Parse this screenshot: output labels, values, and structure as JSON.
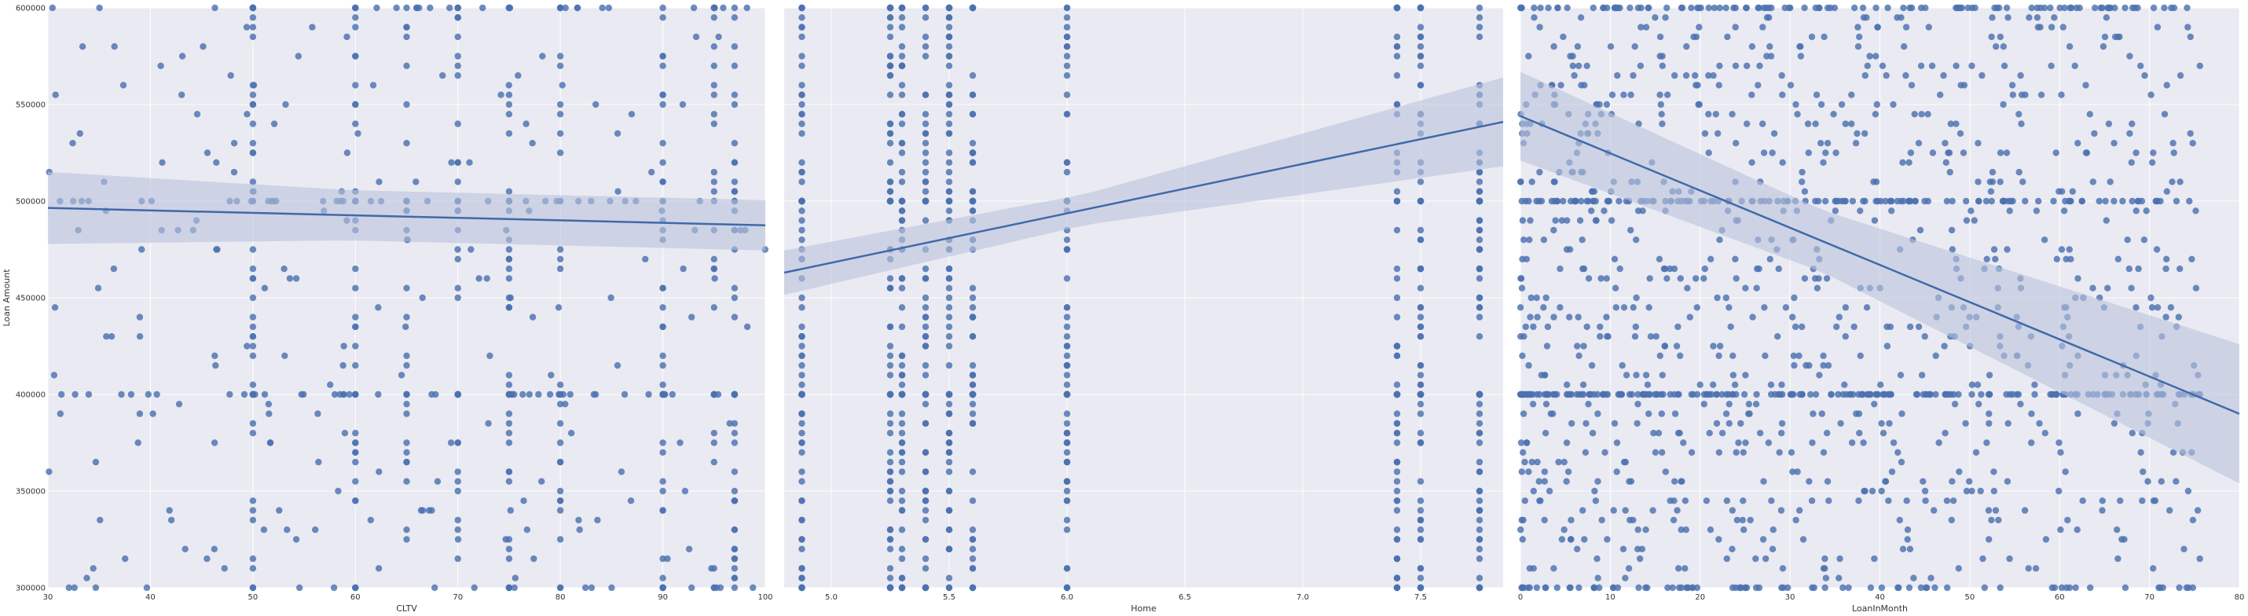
{
  "figure": {
    "ylabel": "Loan Amount"
  },
  "colors": {
    "background": "#ffffff",
    "plot_face": "#eaeaf2",
    "grid": "#ffffff",
    "point": "#4c72b0",
    "line": "#4169a9",
    "band": "#b9c3dc"
  },
  "chart_data": [
    {
      "type": "scatter",
      "xlabel": "CLTV",
      "ylabel": "Loan Amount",
      "xlim": [
        30,
        100
      ],
      "ylim": [
        300000,
        600000
      ],
      "xticks": [
        "30",
        "40",
        "50",
        "60",
        "70",
        "80",
        "90",
        "100"
      ],
      "yticks": [
        "300000",
        "350000",
        "400000",
        "450000",
        "500000",
        "550000",
        "600000"
      ],
      "x_columns": [
        50,
        60,
        65,
        70,
        75,
        80,
        90,
        95,
        97
      ],
      "n_points": 650,
      "regression": {
        "x": [
          30,
          100
        ],
        "y": [
          496500,
          487500
        ],
        "ci_halfwidth": [
          13000,
          13000
        ]
      },
      "grid": true
    },
    {
      "type": "scatter",
      "xlabel": "Home",
      "ylabel": "",
      "xlim": [
        4.8,
        7.85
      ],
      "ylim": [
        300000,
        600000
      ],
      "xticks": [
        "5.0",
        "5.5",
        "6.0",
        "6.5",
        "7.0",
        "7.5"
      ],
      "yticks": [
        "300000",
        "350000",
        "400000",
        "450000",
        "500000",
        "550000",
        "600000"
      ],
      "x_columns": [
        4.875,
        5.25,
        5.3,
        5.4,
        5.5,
        5.6,
        6.0,
        7.4,
        7.5,
        7.75
      ],
      "n_points": 900,
      "regression": {
        "x": [
          4.8,
          7.85
        ],
        "y": [
          463000,
          541000
        ],
        "ci_halfwidth": [
          8000,
          23000
        ]
      },
      "grid": true
    },
    {
      "type": "scatter",
      "xlabel": "LoanInMonth",
      "ylabel": "",
      "xlim": [
        0,
        80
      ],
      "ylim": [
        300000,
        600000
      ],
      "xticks": [
        "0",
        "10",
        "20",
        "30",
        "40",
        "50",
        "60",
        "70",
        "80"
      ],
      "yticks": [
        "300000",
        "350000",
        "400000",
        "450000",
        "500000",
        "550000",
        "600000"
      ],
      "n_points": 1400,
      "regression": {
        "x": [
          0,
          80
        ],
        "y": [
          544000,
          390000
        ],
        "ci_halfwidth": [
          16000,
          36000
        ]
      },
      "grid": true
    }
  ]
}
